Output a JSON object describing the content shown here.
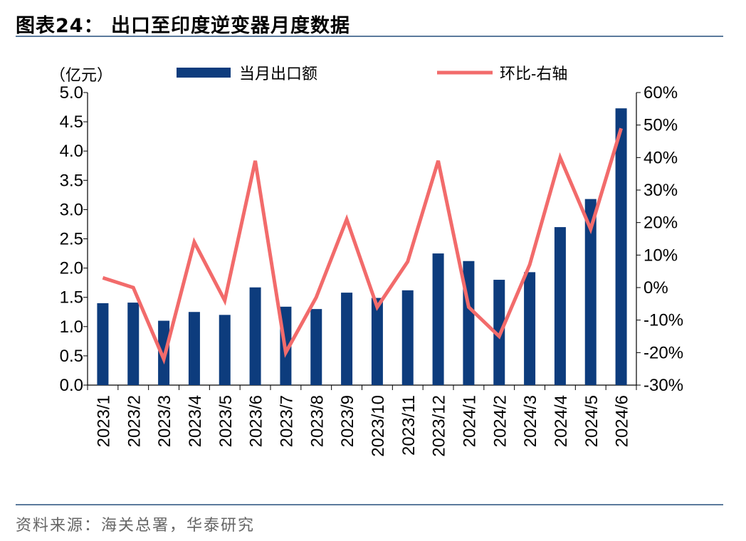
{
  "header": {
    "title": "图表24：  出口至印度逆变器月度数据"
  },
  "footer": {
    "source": "资料来源：海关总署，华泰研究"
  },
  "colors": {
    "bar": "#0d3c7d",
    "line": "#f26b6b",
    "rule": "#5b7a9c"
  },
  "chart_data": {
    "type": "bar",
    "title": "出口至印度逆变器月度数据",
    "unit_label": "（亿元）",
    "categories": [
      "2023/1",
      "2023/2",
      "2023/3",
      "2023/4",
      "2023/5",
      "2023/6",
      "2023/7",
      "2023/8",
      "2023/9",
      "2023/10",
      "2023/11",
      "2023/12",
      "2024/1",
      "2024/2",
      "2024/3",
      "2024/4",
      "2024/5",
      "2024/6"
    ],
    "series": [
      {
        "name": "当月出口额",
        "type": "bar",
        "axis": "left",
        "values": [
          1.4,
          1.41,
          1.1,
          1.25,
          1.2,
          1.67,
          1.34,
          1.3,
          1.58,
          1.49,
          1.62,
          2.25,
          2.12,
          1.8,
          1.93,
          2.7,
          3.18,
          4.73
        ]
      },
      {
        "name": "环比-右轴",
        "type": "line",
        "axis": "right",
        "values": [
          3,
          0,
          -22,
          14,
          -4,
          39,
          -20,
          -3,
          21,
          -6,
          8,
          39,
          -6,
          -15,
          7,
          40,
          18,
          49
        ]
      }
    ],
    "y_left": {
      "min": 0,
      "max": 5,
      "step": 0.5,
      "ticks": [
        "0.0",
        "0.5",
        "1.0",
        "1.5",
        "2.0",
        "2.5",
        "3.0",
        "3.5",
        "4.0",
        "4.5",
        "5.0"
      ]
    },
    "y_right": {
      "min": -30,
      "max": 60,
      "step": 10,
      "ticks": [
        "-30%",
        "-20%",
        "-10%",
        "0%",
        "10%",
        "20%",
        "30%",
        "40%",
        "50%",
        "60%"
      ]
    },
    "legend_position": "top",
    "grid": false
  }
}
